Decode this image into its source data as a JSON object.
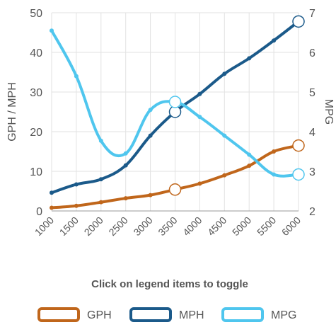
{
  "chart_data": {
    "type": "line",
    "x": [
      1000,
      1500,
      2000,
      2500,
      3000,
      3500,
      4000,
      4500,
      5000,
      5500,
      6000
    ],
    "x_tick_labels": [
      "1000",
      "1500",
      "2000",
      "2500",
      "3000",
      "3500",
      "4000",
      "4500",
      "5000",
      "5500",
      "6000"
    ],
    "y_left": {
      "label": "GPH / MPH",
      "range": [
        0,
        50
      ],
      "ticks": [
        "0",
        "10",
        "20",
        "30",
        "40",
        "50"
      ]
    },
    "y_right": {
      "label": "MPG",
      "range": [
        2,
        7
      ],
      "ticks": [
        "2",
        "3",
        "4",
        "5",
        "6",
        "7"
      ]
    },
    "series": [
      {
        "name": "GPH",
        "axis": "left",
        "color": "#c0661b",
        "values": [
          0.8,
          1.3,
          2.2,
          3.2,
          4.0,
          5.4,
          6.9,
          9.0,
          11.4,
          15.0,
          16.5
        ]
      },
      {
        "name": "MPH",
        "axis": "left",
        "color": "#1b5a8a",
        "values": [
          4.6,
          6.7,
          8.0,
          11.5,
          19.0,
          25.0,
          29.5,
          34.6,
          38.5,
          43.0,
          47.8
        ]
      },
      {
        "name": "MPG",
        "axis": "right",
        "color": "#4fc6ee",
        "values": [
          6.55,
          5.4,
          3.77,
          3.45,
          4.55,
          4.75,
          4.37,
          3.9,
          3.42,
          2.92,
          2.92
        ]
      }
    ],
    "highlighted_x": [
      3500,
      6000
    ],
    "grid": true,
    "legend_position": "bottom",
    "note": "Click on legend items to toggle"
  }
}
